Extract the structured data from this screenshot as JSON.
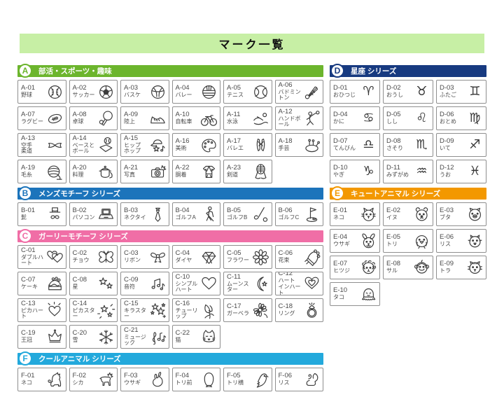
{
  "page_title": "マーク一覧",
  "colors": {
    "title_bar_bg": "#c7efa5",
    "cell_border": "#8f8f8f",
    "text": "#4a4a4a",
    "series_a": "#6cb52d",
    "series_b": "#1c74bb",
    "series_c": "#f06ea6",
    "series_d": "#173a80",
    "series_e": "#f39800",
    "series_f": "#23a9dc"
  },
  "sections": [
    {
      "badge": "A",
      "title": "部活・スポーツ・趣味",
      "color": "#6cb52d",
      "columns": 6,
      "column": "left",
      "items": [
        {
          "code": "A-01",
          "name": "野球",
          "icon": "baseball"
        },
        {
          "code": "A-02",
          "name": "サッカー",
          "icon": "soccer"
        },
        {
          "code": "A-03",
          "name": "バスケ",
          "icon": "basketball"
        },
        {
          "code": "A-04",
          "name": "バレー",
          "icon": "volleyball"
        },
        {
          "code": "A-05",
          "name": "テニス",
          "icon": "tennis"
        },
        {
          "code": "A-06",
          "name": "バドミントン",
          "icon": "badminton"
        },
        {
          "code": "A-07",
          "name": "ラグビー",
          "icon": "rugby"
        },
        {
          "code": "A-08",
          "name": "卓球",
          "icon": "tabletennis"
        },
        {
          "code": "A-09",
          "name": "陸上",
          "icon": "shoe"
        },
        {
          "code": "A-10",
          "name": "自転車",
          "icon": "bicycle"
        },
        {
          "code": "A-11",
          "name": "水泳",
          "icon": "swim"
        },
        {
          "code": "A-12",
          "name": "ハンドボール",
          "icon": "handball"
        },
        {
          "code": "A-13",
          "name": "空手\n柔道",
          "icon": "karate"
        },
        {
          "code": "A-14",
          "name": "ベースと\nボール",
          "icon": "baseandball"
        },
        {
          "code": "A-15",
          "name": "ヒップ\nホップ",
          "icon": "hiphop"
        },
        {
          "code": "A-16",
          "name": "美術",
          "icon": "palette"
        },
        {
          "code": "A-17",
          "name": "バレエ",
          "icon": "ballet"
        },
        {
          "code": "A-18",
          "name": "手芸",
          "icon": "pincushion"
        },
        {
          "code": "A-19",
          "name": "毛糸",
          "icon": "yarn"
        },
        {
          "code": "A-20",
          "name": "料理",
          "icon": "pot"
        },
        {
          "code": "A-21",
          "name": "写真",
          "icon": "camera"
        },
        {
          "code": "A-22",
          "name": "胴着",
          "icon": "gi"
        },
        {
          "code": "A-23",
          "name": "剣道",
          "icon": "kendo"
        }
      ]
    },
    {
      "badge": "B",
      "title": "メンズモチーフ シリーズ",
      "color": "#1c74bb",
      "columns": 6,
      "column": "left",
      "items": [
        {
          "code": "B-01",
          "name": "髭",
          "icon": "tophat"
        },
        {
          "code": "B-02",
          "name": "パソコン",
          "icon": "laptop"
        },
        {
          "code": "B-03",
          "name": "ネクタイ",
          "icon": "necktie"
        },
        {
          "code": "B-04",
          "name": "ゴルフA",
          "icon": "golfer"
        },
        {
          "code": "B-05",
          "name": "ゴルフB",
          "icon": "golfclub"
        },
        {
          "code": "B-06",
          "name": "ゴルフC",
          "icon": "golfflag"
        }
      ]
    },
    {
      "badge": "C",
      "title": "ガーリーモチーフ シリーズ",
      "color": "#f06ea6",
      "columns": 6,
      "column": "left",
      "items": [
        {
          "code": "C-01",
          "name": "ダブルハート",
          "icon": "doubleheart"
        },
        {
          "code": "C-02",
          "name": "チョウ",
          "icon": "butterfly"
        },
        {
          "code": "C-03",
          "name": "リボン",
          "icon": "bow"
        },
        {
          "code": "C-04",
          "name": "ダイヤ",
          "icon": "gem"
        },
        {
          "code": "C-05",
          "name": "フラワー",
          "icon": "daisy"
        },
        {
          "code": "C-06",
          "name": "花束",
          "icon": "bouquet"
        },
        {
          "code": "C-07",
          "name": "ケーキ",
          "icon": "cake"
        },
        {
          "code": "C-08",
          "name": "星",
          "icon": "stars2"
        },
        {
          "code": "C-09",
          "name": "音符",
          "icon": "notes"
        },
        {
          "code": "C-10",
          "name": "シンプルハート",
          "icon": "heart"
        },
        {
          "code": "C-11",
          "name": "ムーンスター",
          "icon": "moonstar"
        },
        {
          "code": "C-12",
          "name": "ハート\nインハート",
          "icon": "heartinheart"
        },
        {
          "code": "C-13",
          "name": "ピカハート",
          "icon": "pikaheart"
        },
        {
          "code": "C-14",
          "name": "ピカスター",
          "icon": "pikastar"
        },
        {
          "code": "C-15",
          "name": "キラスター",
          "icon": "kirastar"
        },
        {
          "code": "C-16",
          "name": "チューリップ",
          "icon": "tulip"
        },
        {
          "code": "C-17",
          "name": "ガーベラ",
          "icon": "gerbera"
        },
        {
          "code": "C-18",
          "name": "リング",
          "icon": "ring"
        },
        {
          "code": "C-19",
          "name": "王冠",
          "icon": "crown"
        },
        {
          "code": "C-20",
          "name": "雪",
          "icon": "snowflake"
        },
        {
          "code": "C-21",
          "name": "ミュージック",
          "icon": "music"
        },
        {
          "code": "C-22",
          "name": "猫",
          "icon": "girlycat"
        }
      ]
    },
    {
      "badge": "D",
      "title": "星座 シリーズ",
      "color": "#173a80",
      "columns": 3,
      "column": "right",
      "items": [
        {
          "code": "D-01",
          "name": "おひつじ",
          "icon": "aries",
          "glyph": "♈"
        },
        {
          "code": "D-02",
          "name": "おうし",
          "icon": "taurus",
          "glyph": "♉"
        },
        {
          "code": "D-03",
          "name": "ふたご",
          "icon": "gemini",
          "glyph": "♊"
        },
        {
          "code": "D-04",
          "name": "かに",
          "icon": "cancer",
          "glyph": "♋"
        },
        {
          "code": "D-05",
          "name": "しし",
          "icon": "leo",
          "glyph": "♌"
        },
        {
          "code": "D-06",
          "name": "おとめ",
          "icon": "virgo",
          "glyph": "♍"
        },
        {
          "code": "D-07",
          "name": "てんびん",
          "icon": "libra",
          "glyph": "♎"
        },
        {
          "code": "D-08",
          "name": "さそり",
          "icon": "scorpio",
          "glyph": "♏"
        },
        {
          "code": "D-09",
          "name": "いて",
          "icon": "sagittarius",
          "glyph": "♐"
        },
        {
          "code": "D-10",
          "name": "やぎ",
          "icon": "capricorn",
          "glyph": "♑"
        },
        {
          "code": "D-11",
          "name": "みずがめ",
          "icon": "aquarius",
          "glyph": "♒"
        },
        {
          "code": "D-12",
          "name": "うお",
          "icon": "pisces",
          "glyph": "♓"
        }
      ]
    },
    {
      "badge": "E",
      "title": "キュートアニマル シリーズ",
      "color": "#f39800",
      "columns": 3,
      "column": "right",
      "items": [
        {
          "code": "E-01",
          "name": "ネコ",
          "icon": "cutecat"
        },
        {
          "code": "E-02",
          "name": "イヌ",
          "icon": "cutedog"
        },
        {
          "code": "E-03",
          "name": "ブタ",
          "icon": "cutepig"
        },
        {
          "code": "E-04",
          "name": "ウサギ",
          "icon": "cuterabbit"
        },
        {
          "code": "E-05",
          "name": "トリ",
          "icon": "cutebird"
        },
        {
          "code": "E-06",
          "name": "リス",
          "icon": "cutesquirrel"
        },
        {
          "code": "E-07",
          "name": "ヒツジ",
          "icon": "cutesheep"
        },
        {
          "code": "E-08",
          "name": "サル",
          "icon": "cutemonkey"
        },
        {
          "code": "E-09",
          "name": "トラ",
          "icon": "cutetiger"
        },
        {
          "code": "E-10",
          "name": "タコ",
          "icon": "cuteoctopus"
        }
      ]
    },
    {
      "badge": "F",
      "title": "クールアニマル シリーズ",
      "color": "#23a9dc",
      "columns": 6,
      "column": "left",
      "items": [
        {
          "code": "F-01",
          "name": "ネコ",
          "icon": "coolcat"
        },
        {
          "code": "F-02",
          "name": "シカ",
          "icon": "deer"
        },
        {
          "code": "F-03",
          "name": "ウサギ",
          "icon": "coolrabbit"
        },
        {
          "code": "F-04",
          "name": "トリ前",
          "icon": "birdfront"
        },
        {
          "code": "F-05",
          "name": "トリ横",
          "icon": "birdside"
        },
        {
          "code": "F-06",
          "name": "リス",
          "icon": "coolsquirrel"
        }
      ]
    }
  ]
}
